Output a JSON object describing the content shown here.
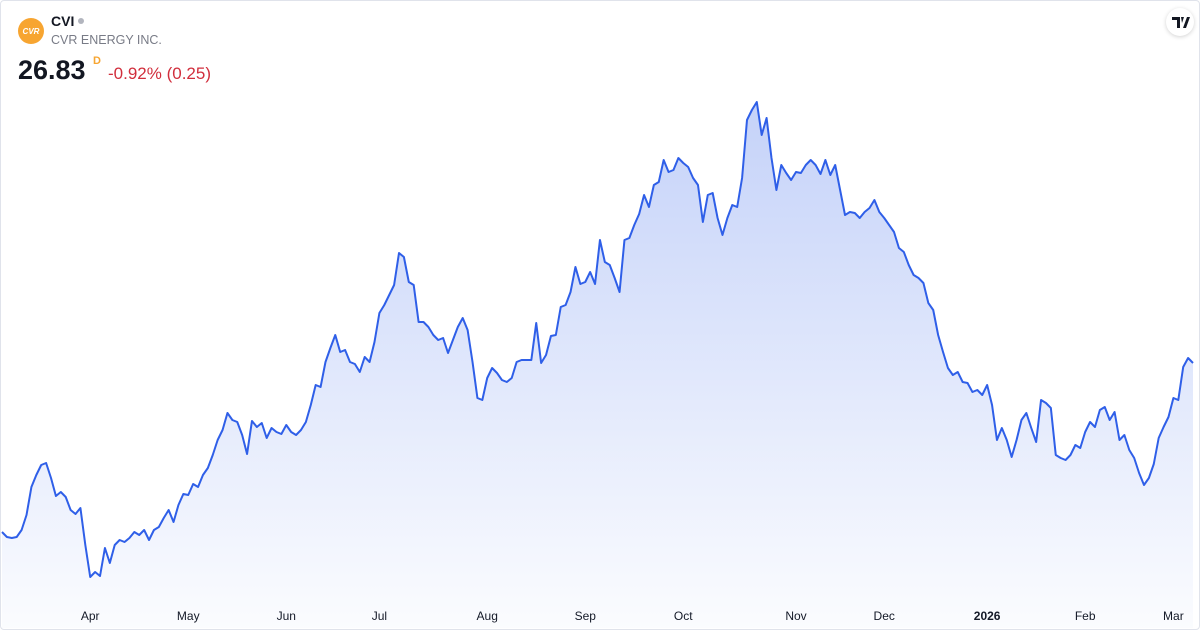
{
  "header": {
    "logo_text": "CVR",
    "ticker": "CVI",
    "company": "CVR ENERGY INC.",
    "price": "26.83",
    "interval": "D",
    "change": "-0.92% (0.25)"
  },
  "chart_data": {
    "type": "area",
    "color": "#2f5fe8",
    "categories": [
      null,
      null,
      null,
      null,
      null,
      null,
      null,
      null,
      null,
      null,
      null,
      null,
      null,
      null,
      null,
      null,
      null,
      null,
      "Apr",
      null,
      null,
      null,
      null,
      null,
      null,
      null,
      null,
      null,
      null,
      null,
      null,
      null,
      null,
      null,
      null,
      null,
      null,
      null,
      "May",
      null,
      null,
      null,
      null,
      null,
      null,
      null,
      null,
      null,
      null,
      null,
      null,
      null,
      null,
      null,
      null,
      null,
      null,
      null,
      "Jun",
      null,
      null,
      null,
      null,
      null,
      null,
      null,
      null,
      null,
      null,
      null,
      null,
      null,
      null,
      null,
      null,
      null,
      null,
      "Jul",
      null,
      null,
      null,
      null,
      null,
      null,
      null,
      null,
      null,
      null,
      null,
      null,
      null,
      null,
      null,
      null,
      null,
      null,
      null,
      null,
      null,
      "Aug",
      null,
      null,
      null,
      null,
      null,
      null,
      null,
      null,
      null,
      null,
      null,
      null,
      null,
      null,
      null,
      null,
      null,
      null,
      null,
      "Sep",
      null,
      null,
      null,
      null,
      null,
      null,
      null,
      null,
      null,
      null,
      null,
      null,
      null,
      null,
      null,
      null,
      null,
      null,
      null,
      "Oct",
      null,
      null,
      null,
      null,
      null,
      null,
      null,
      null,
      null,
      null,
      null,
      null,
      null,
      null,
      null,
      null,
      null,
      null,
      null,
      null,
      null,
      null,
      "Nov",
      null,
      null,
      null,
      null,
      null,
      null,
      null,
      null,
      null,
      null,
      null,
      null,
      null,
      null,
      null,
      null,
      null,
      "Dec",
      null,
      null,
      null,
      null,
      null,
      null,
      null,
      null,
      null,
      null,
      null,
      null,
      null,
      null,
      null,
      null,
      null,
      null,
      null,
      null,
      "2026",
      null,
      null,
      null,
      null,
      null,
      null,
      null,
      null,
      null,
      null,
      null,
      null,
      null,
      null,
      null,
      null,
      null,
      null,
      null,
      "Feb",
      null,
      null,
      null,
      null,
      null,
      null,
      null,
      null,
      null,
      null,
      null,
      null,
      null,
      null,
      null,
      null,
      null,
      "Mar",
      null,
      null,
      null,
      null
    ],
    "values": [
      18.38,
      18.13,
      18.08,
      18.13,
      18.48,
      19.23,
      20.63,
      21.23,
      21.73,
      21.83,
      21.08,
      20.18,
      20.38,
      20.13,
      19.48,
      19.28,
      19.58,
      17.73,
      16.13,
      16.38,
      16.18,
      17.58,
      16.83,
      17.73,
      17.98,
      17.88,
      18.08,
      18.38,
      18.23,
      18.48,
      17.98,
      18.48,
      18.63,
      19.08,
      19.48,
      18.88,
      19.73,
      20.28,
      20.23,
      20.78,
      20.63,
      21.23,
      21.58,
      22.23,
      22.98,
      23.48,
      24.33,
      23.98,
      23.88,
      23.23,
      22.28,
      23.93,
      23.63,
      23.83,
      23.08,
      23.58,
      23.38,
      23.28,
      23.73,
      23.38,
      23.23,
      23.48,
      23.88,
      24.73,
      25.73,
      25.63,
      26.88,
      27.58,
      28.23,
      27.38,
      27.48,
      26.88,
      26.78,
      26.38,
      27.13,
      26.88,
      27.88,
      29.33,
      29.73,
      30.23,
      30.73,
      32.33,
      32.13,
      30.88,
      30.73,
      28.88,
      28.88,
      28.63,
      28.23,
      27.98,
      28.08,
      27.33,
      27.98,
      28.63,
      29.08,
      28.48,
      26.88,
      25.08,
      24.98,
      26.08,
      26.58,
      26.33,
      25.98,
      25.88,
      26.08,
      26.88,
      26.98,
      26.98,
      26.98,
      28.83,
      26.83,
      27.23,
      28.18,
      28.23,
      29.63,
      29.73,
      30.38,
      31.63,
      30.78,
      30.88,
      31.38,
      30.78,
      32.98,
      31.88,
      31.73,
      31.08,
      30.38,
      32.98,
      33.08,
      33.73,
      34.28,
      35.23,
      34.63,
      35.73,
      35.88,
      36.98,
      36.38,
      36.48,
      37.08,
      36.83,
      36.63,
      36.08,
      35.73,
      33.88,
      35.23,
      35.33,
      34.08,
      33.23,
      34.08,
      34.73,
      34.63,
      36.08,
      38.98,
      39.48,
      39.88,
      38.23,
      39.08,
      37.08,
      35.48,
      36.73,
      36.33,
      35.98,
      36.38,
      36.33,
      36.73,
      36.98,
      36.73,
      36.28,
      36.98,
      36.23,
      36.73,
      35.48,
      34.23,
      34.38,
      34.33,
      34.08,
      34.38,
      34.58,
      34.98,
      34.38,
      34.08,
      33.73,
      33.38,
      32.58,
      32.38,
      31.73,
      31.23,
      31.08,
      30.83,
      29.83,
      29.48,
      28.23,
      27.38,
      26.58,
      26.23,
      26.38,
      25.88,
      25.83,
      25.38,
      25.48,
      25.23,
      25.73,
      24.73,
      22.98,
      23.58,
      22.98,
      22.13,
      22.98,
      23.98,
      24.33,
      23.58,
      22.88,
      24.98,
      24.83,
      24.58,
      22.23,
      22.08,
      21.98,
      22.23,
      22.73,
      22.58,
      23.38,
      23.88,
      23.63,
      24.48,
      24.63,
      23.98,
      24.38,
      22.98,
      23.23,
      22.48,
      22.08,
      21.33,
      20.73,
      21.08,
      21.78,
      23.08,
      23.63,
      24.13,
      25.08,
      24.98,
      26.63,
      27.08,
      26.83
    ]
  }
}
